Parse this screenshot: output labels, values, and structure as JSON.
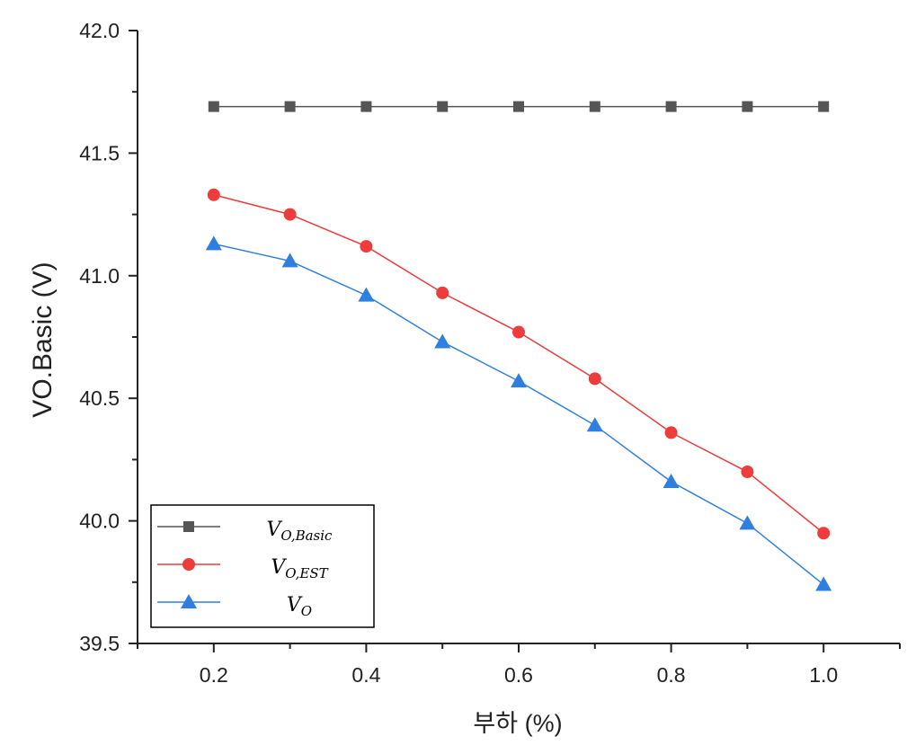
{
  "chart_data": {
    "type": "line",
    "x": [
      0.2,
      0.3,
      0.4,
      0.5,
      0.6,
      0.7,
      0.8,
      0.9,
      1.0
    ],
    "series": [
      {
        "name": "V_O,Basic",
        "label_main": "V",
        "label_sub": "O,Basic",
        "marker": "square",
        "color": "#555555",
        "values": [
          41.69,
          41.69,
          41.69,
          41.69,
          41.69,
          41.69,
          41.69,
          41.69,
          41.69
        ]
      },
      {
        "name": "V_O,EST",
        "label_main": "V",
        "label_sub": "O,EST",
        "marker": "circle",
        "color": "#ee3b3b",
        "values": [
          41.33,
          41.25,
          41.12,
          40.93,
          40.77,
          40.58,
          40.36,
          40.2,
          39.95
        ]
      },
      {
        "name": "V_O",
        "label_main": "V",
        "label_sub": "O",
        "marker": "triangle",
        "color": "#2f7fe0",
        "values": [
          41.13,
          41.06,
          40.92,
          40.73,
          40.57,
          40.39,
          40.16,
          39.99,
          39.74
        ]
      }
    ],
    "xlabel": "부하 (%)",
    "ylabel": "VO.Basic (V)",
    "xlim": [
      0.1,
      1.1
    ],
    "ylim": [
      39.5,
      42.0
    ],
    "xticks": [
      0.2,
      0.4,
      0.6,
      0.8,
      1.0
    ],
    "xtick_labels": [
      "0.2",
      "0.4",
      "0.6",
      "0.8",
      "1.0"
    ],
    "yticks": [
      39.5,
      40.0,
      40.5,
      41.0,
      41.5,
      42.0
    ],
    "ytick_labels": [
      "39.5",
      "40.0",
      "40.5",
      "41.0",
      "41.5",
      "42.0"
    ],
    "grid": false,
    "legend_position": "bottom-left"
  }
}
